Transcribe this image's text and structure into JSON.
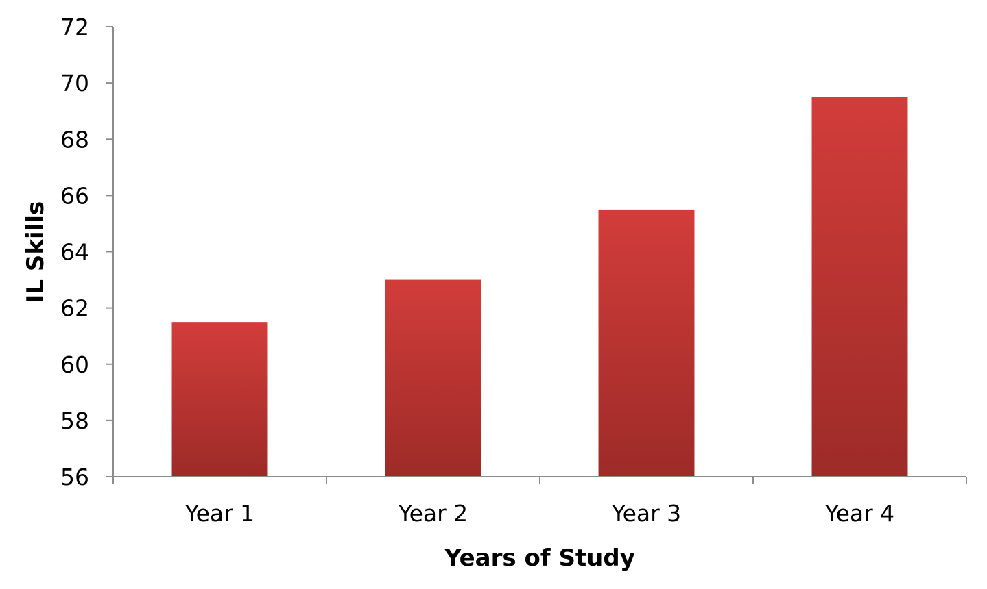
{
  "chart_data": {
    "type": "bar",
    "title": "",
    "xlabel": "Years of Study",
    "ylabel": "IL Skills",
    "categories": [
      "Year 1",
      "Year 2",
      "Year 3",
      "Year 4"
    ],
    "values": [
      61.5,
      63,
      65.5,
      69.5
    ],
    "ylim": [
      56,
      72
    ],
    "yticks": [
      56,
      58,
      60,
      62,
      64,
      66,
      68,
      70,
      72
    ],
    "grid": false,
    "legend": "none",
    "colors": {
      "bar_top": "#d23d3a",
      "bar_bottom": "#9d2b28",
      "axis": "#8c8c8c"
    }
  }
}
